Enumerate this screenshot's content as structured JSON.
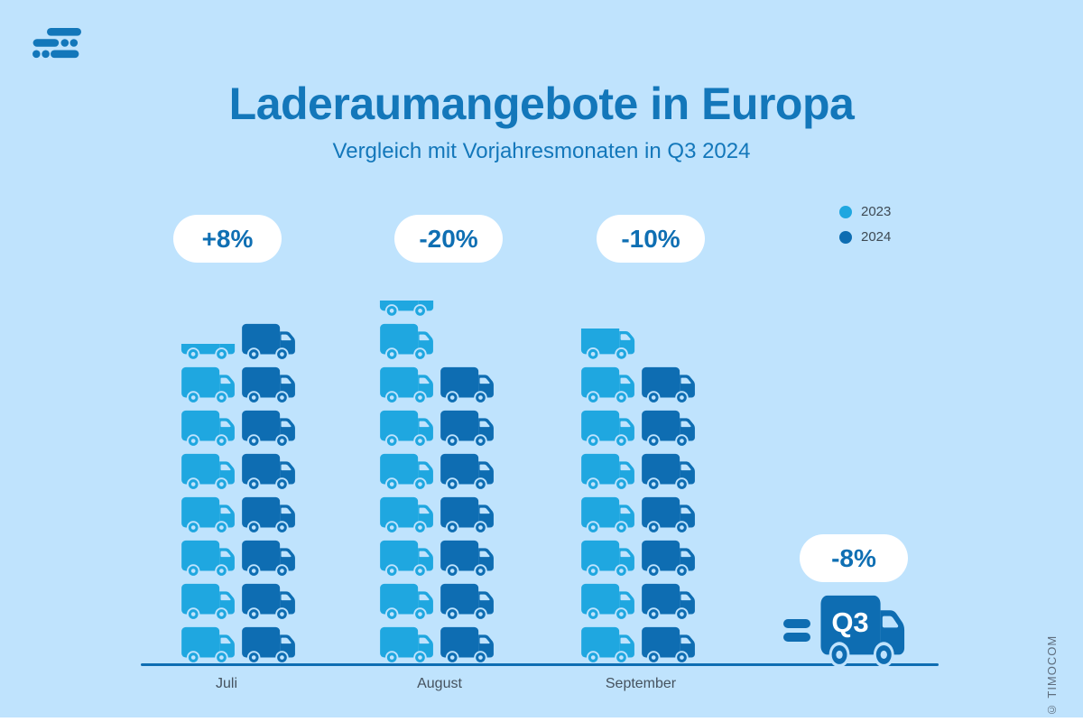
{
  "header": {
    "title": "Laderaumangebote in Europa",
    "subtitle": "Vergleich mit Vorjahresmonaten in Q3 2024"
  },
  "legend": {
    "items": [
      {
        "label": "2023",
        "color": "#1fa7e0"
      },
      {
        "label": "2024",
        "color": "#0e6db2"
      }
    ]
  },
  "chart_data": {
    "type": "pictogram-bar",
    "title": "Laderaumangebote in Europa",
    "subtitle": "Vergleich mit Vorjahresmonaten in Q3 2024",
    "categories": [
      "Juli",
      "August",
      "September"
    ],
    "series": [
      {
        "name": "2023",
        "color": "#1fa7e0",
        "values": [
          7.5,
          8.5,
          7.8
        ],
        "icon_stacks": [
          {
            "full_trucks": 7,
            "partial": "flatbed"
          },
          {
            "full_trucks": 8,
            "partial": "flatbed"
          },
          {
            "full_trucks": 7,
            "partial": "tall"
          }
        ]
      },
      {
        "name": "2024",
        "color": "#0e6db2",
        "values": [
          8,
          7,
          7
        ],
        "icon_stacks": [
          {
            "full_trucks": 8,
            "partial": null
          },
          {
            "full_trucks": 7,
            "partial": null
          },
          {
            "full_trucks": 7,
            "partial": null
          }
        ]
      }
    ],
    "change_badges": [
      "+8%",
      "-20%",
      "-10%"
    ],
    "summary": {
      "equals": "=",
      "truck_label": "Q3",
      "badge": "-8%"
    },
    "legend_position": "top-right",
    "axis": "single bottom baseline, no gridlines",
    "unit": "truck icons (relative volume of freight-space offers)"
  },
  "months": [
    "Juli",
    "August",
    "September"
  ],
  "copyright": "© TIMOCOM",
  "colors": {
    "background": "#bfe3fd",
    "light_blue_2023": "#1fa7e0",
    "dark_blue_2024": "#0e6db2",
    "title_blue": "#1377ba",
    "badge_bg": "#ffffff",
    "badge_text": "#0f6fb3",
    "month_label": "#45525e",
    "legend_text": "#3e4a54",
    "copyright_text": "#5f6e7e",
    "bottom_strip": "#ffffff"
  }
}
